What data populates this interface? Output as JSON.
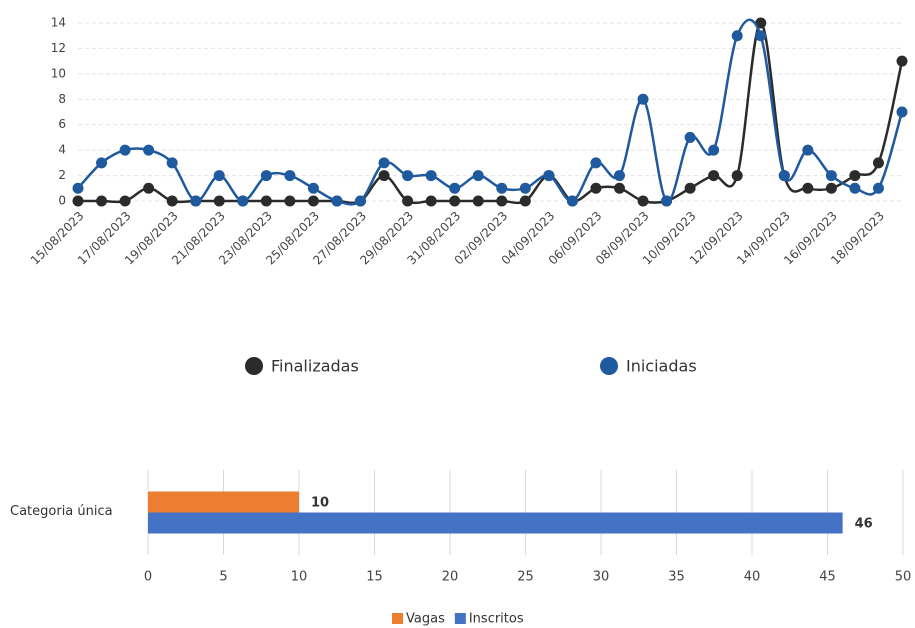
{
  "chart_data": [
    {
      "type": "line",
      "categories": [
        "15/08/2023",
        null,
        "17/08/2023",
        null,
        "19/08/2023",
        null,
        "21/08/2023",
        null,
        "23/08/2023",
        null,
        "25/08/2023",
        null,
        "27/08/2023",
        null,
        "29/08/2023",
        null,
        "31/08/2023",
        null,
        "02/09/2023",
        null,
        "04/09/2023",
        null,
        "06/09/2023",
        null,
        "08/09/2023",
        null,
        "10/09/2023",
        null,
        "12/09/2023",
        null,
        "14/09/2023",
        null,
        "16/09/2023",
        null,
        "18/09/2023",
        null
      ],
      "series": [
        {
          "name": "Finalizadas",
          "color": "#2b2b2b",
          "values": [
            0,
            0,
            0,
            1,
            0,
            0,
            0,
            0,
            0,
            0,
            0,
            0,
            0,
            2,
            0,
            0,
            0,
            0,
            0,
            0,
            2,
            0,
            1,
            1,
            0,
            0,
            1,
            2,
            2,
            14,
            2,
            1,
            1,
            2,
            3,
            11
          ]
        },
        {
          "name": "Iniciadas",
          "color": "#1f5a9e",
          "values": [
            1,
            3,
            4,
            4,
            3,
            0,
            2,
            0,
            2,
            2,
            1,
            0,
            0,
            3,
            2,
            2,
            1,
            2,
            1,
            1,
            2,
            0,
            3,
            2,
            8,
            0,
            5,
            4,
            13,
            13,
            2,
            4,
            2,
            1,
            1,
            7
          ]
        }
      ],
      "ylim": [
        0,
        14
      ],
      "yticks": [
        0,
        2,
        4,
        6,
        8,
        10,
        12,
        14
      ],
      "grid": true,
      "smooth": true
    },
    {
      "type": "bar",
      "orientation": "horizontal",
      "categories": [
        "Categoria única"
      ],
      "series": [
        {
          "name": "Vagas",
          "color": "#ed7d31",
          "values": [
            10
          ]
        },
        {
          "name": "Inscritos",
          "color": "#4472c4",
          "values": [
            46
          ]
        }
      ],
      "xlim": [
        0,
        50
      ],
      "xticks": [
        0,
        5,
        10,
        15,
        20,
        25,
        30,
        35,
        40,
        45,
        50
      ],
      "grid": true,
      "data_labels": true
    }
  ]
}
